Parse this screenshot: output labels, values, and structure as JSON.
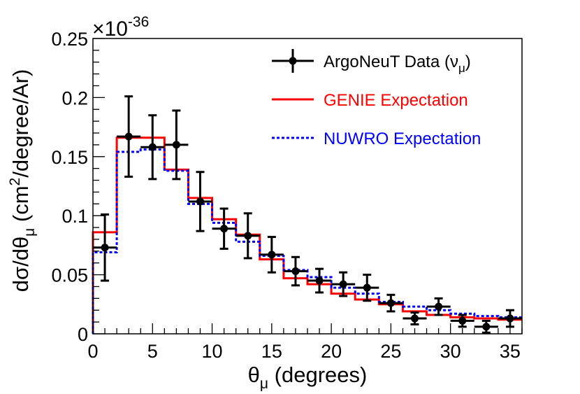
{
  "chart_data": {
    "type": "line",
    "xlabel": "θμ (degrees)",
    "ylabel": "dσ/dθμ (cm²/degree/Ar)",
    "xlabel_parts": {
      "main": "θ",
      "sub": "μ",
      "rest": " (degrees)"
    },
    "ylabel_parts": {
      "pre": "dσ/dθ",
      "sub": "μ",
      "mid": " (cm",
      "sup": "2",
      "post": "/degree/Ar)"
    },
    "exponent": {
      "prefix": "×10",
      "power": "-36"
    },
    "xlim": [
      0,
      36
    ],
    "ylim": [
      0,
      0.25
    ],
    "x_ticks": [
      0,
      5,
      10,
      15,
      20,
      25,
      30,
      35
    ],
    "x_tick_labels": [
      "0",
      "5",
      "10",
      "15",
      "20",
      "25",
      "30",
      "35"
    ],
    "y_ticks": [
      0,
      0.05,
      0.1,
      0.15,
      0.2,
      0.25
    ],
    "y_tick_labels": [
      "0",
      "0.05",
      "0.1",
      "0.15",
      "0.2",
      "0.25"
    ],
    "bin_edges": [
      0,
      2,
      4,
      6,
      8,
      10,
      12,
      14,
      16,
      18,
      20,
      22,
      24,
      26,
      28,
      30,
      32,
      34,
      36
    ],
    "series": [
      {
        "name": "ArgoNeuT Data (νμ)",
        "name_parts": {
          "pre": "ArgoNeuT Data (ν",
          "sub": "μ",
          "post": ")"
        },
        "kind": "points",
        "color": "#000000",
        "x": [
          1,
          3,
          5,
          7,
          9,
          11,
          13,
          15,
          17,
          19,
          21,
          23,
          25,
          27,
          29,
          31,
          33,
          35
        ],
        "y": [
          0.073,
          0.167,
          0.158,
          0.16,
          0.112,
          0.089,
          0.083,
          0.067,
          0.053,
          0.045,
          0.042,
          0.039,
          0.026,
          0.013,
          0.023,
          0.011,
          0.006,
          0.013
        ],
        "x_err": 1,
        "y_err": [
          0.028,
          0.034,
          0.027,
          0.029,
          0.025,
          0.017,
          0.019,
          0.015,
          0.012,
          0.01,
          0.01,
          0.011,
          0.007,
          0.005,
          0.007,
          0.005,
          0.005,
          0.007
        ]
      },
      {
        "name": "GENIE Expectation",
        "kind": "step",
        "color": "#ff0000",
        "values": [
          0.086,
          0.166,
          0.166,
          0.139,
          0.115,
          0.097,
          0.084,
          0.063,
          0.047,
          0.042,
          0.034,
          0.029,
          0.025,
          0.019,
          0.016,
          0.014,
          0.013,
          0.012
        ]
      },
      {
        "name": "NUWRO Expectation",
        "kind": "step",
        "color": "#0000ff",
        "dashed": true,
        "values": [
          0.069,
          0.154,
          0.156,
          0.138,
          0.11,
          0.094,
          0.078,
          0.066,
          0.054,
          0.048,
          0.039,
          0.034,
          0.027,
          0.023,
          0.02,
          0.017,
          0.015,
          0.014
        ]
      }
    ],
    "legend": {
      "placement": "top-right"
    }
  }
}
